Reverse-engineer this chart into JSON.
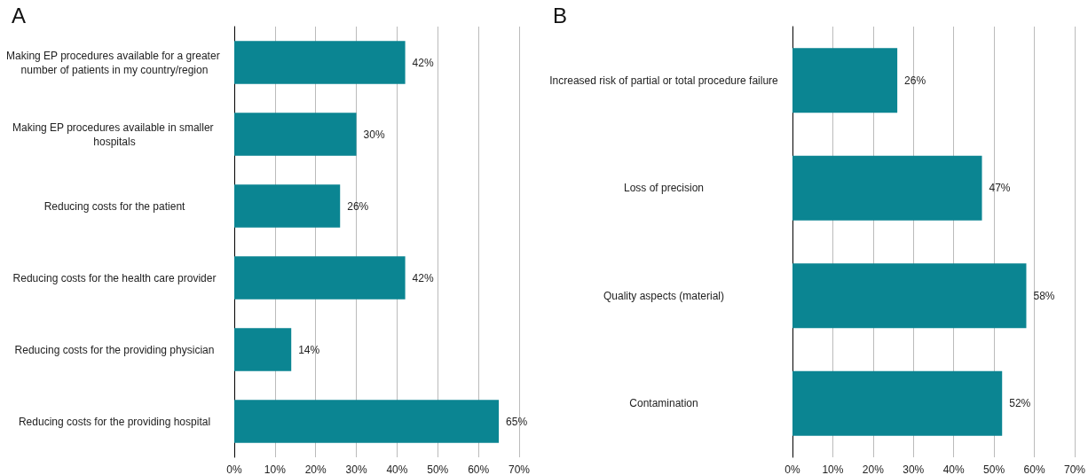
{
  "chart_data": [
    {
      "type": "bar",
      "title": "A",
      "orientation": "horizontal",
      "categories": [
        "Making EP procedures available for a greater number of patients in my country/region",
        "Making EP procedures available in smaller hospitals",
        "Reducing costs for the patient",
        "Reducing costs for the health care provider",
        "Reducing costs for the providing physician",
        "Reducing costs for the providing hospital"
      ],
      "values": [
        42,
        30,
        26,
        42,
        14,
        65
      ],
      "value_labels": [
        "42%",
        "30%",
        "26%",
        "42%",
        "14%",
        "65%"
      ],
      "color": "#0b8592",
      "xlim": [
        0,
        70
      ],
      "xticks": [
        {
          "value": 0,
          "label": "0%"
        },
        {
          "value": 10,
          "label": "10%"
        },
        {
          "value": 20,
          "label": "20%"
        },
        {
          "value": 30,
          "label": "30%"
        },
        {
          "value": 40,
          "label": "40%"
        },
        {
          "value": 50,
          "label": "50%"
        },
        {
          "value": 60,
          "label": "60%"
        },
        {
          "value": 70,
          "label": "70%"
        }
      ],
      "grid": "x"
    },
    {
      "type": "bar",
      "title": "B",
      "orientation": "horizontal",
      "categories": [
        "Increased risk of partial or total procedure failure",
        "Loss of precision",
        "Quality aspects (material)",
        "Contamination"
      ],
      "values": [
        26,
        47,
        58,
        52
      ],
      "value_labels": [
        "26%",
        "47%",
        "58%",
        "52%"
      ],
      "color": "#0b8592",
      "xlim": [
        0,
        70
      ],
      "xticks": [
        {
          "value": 0,
          "label": "0%"
        },
        {
          "value": 10,
          "label": "10%"
        },
        {
          "value": 20,
          "label": "20%"
        },
        {
          "value": 30,
          "label": "30%"
        },
        {
          "value": 40,
          "label": "40%"
        },
        {
          "value": 50,
          "label": "50%"
        },
        {
          "value": 60,
          "label": "60%"
        },
        {
          "value": 70,
          "label": "70%"
        }
      ],
      "grid": "x"
    }
  ]
}
